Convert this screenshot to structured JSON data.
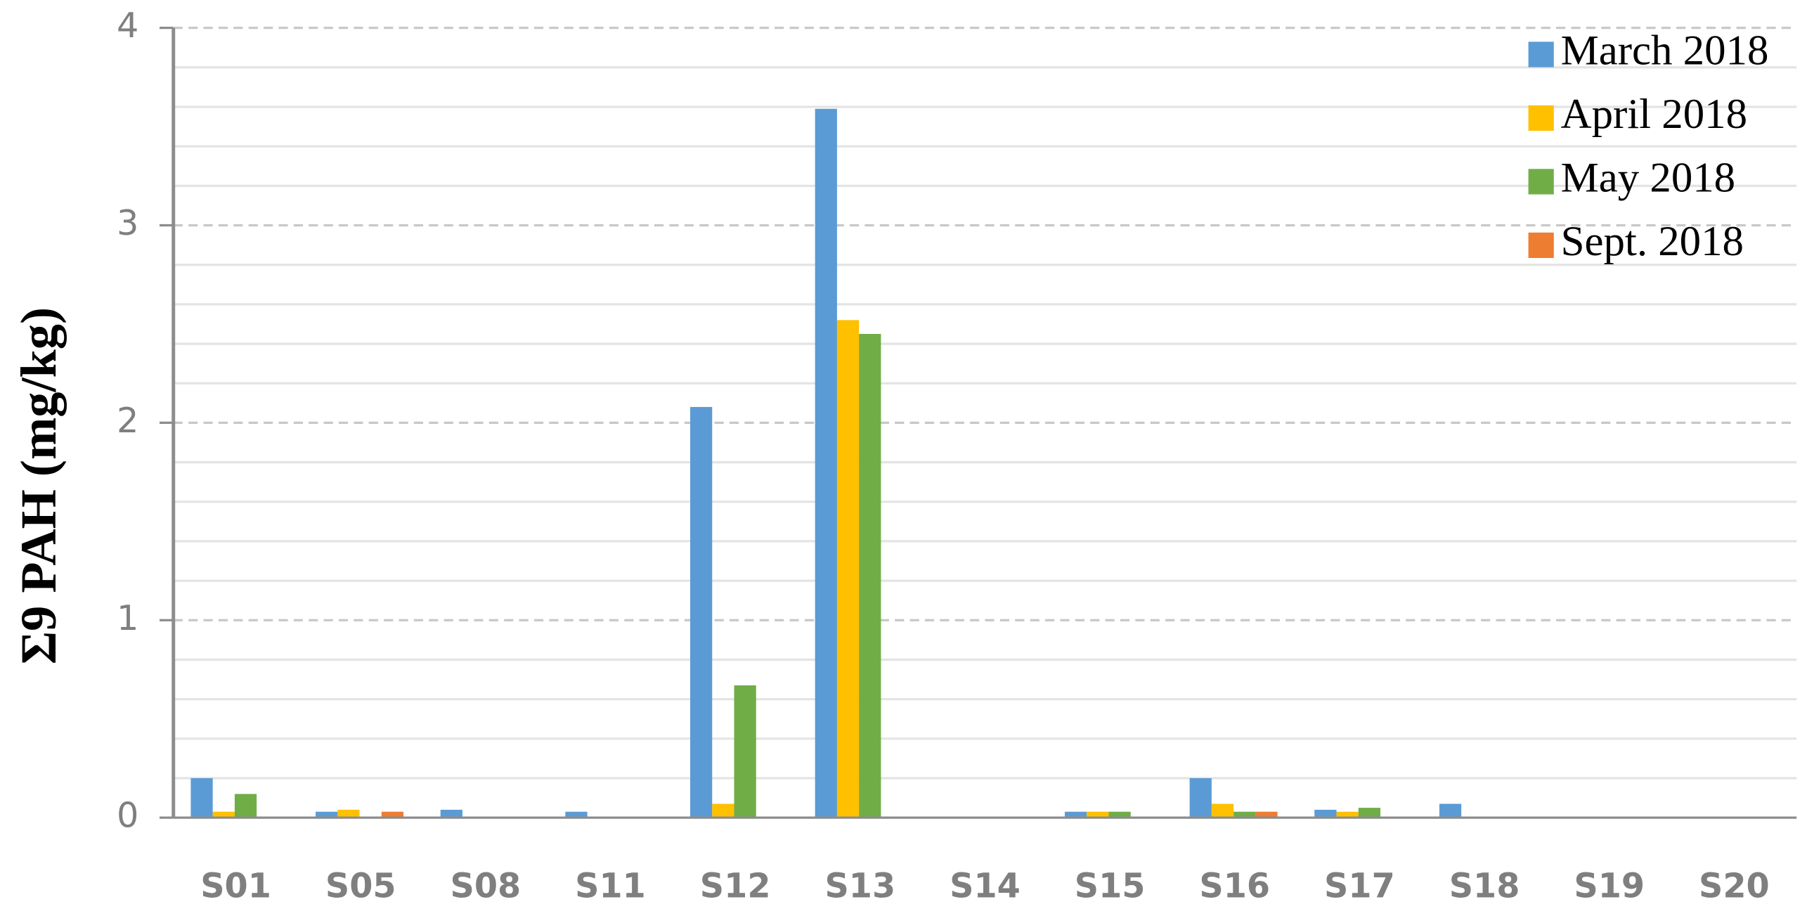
{
  "chart_data": {
    "type": "bar",
    "y_label": "Σ9 PAH (mg/kg)",
    "categories": [
      "S01",
      "S05",
      "S08",
      "S11",
      "S12",
      "S13",
      "S14",
      "S15",
      "S16",
      "S17",
      "S18",
      "S19",
      "S20"
    ],
    "series": [
      {
        "name": "March 2018",
        "color": "#5b9bd5",
        "values": [
          0.2,
          0.03,
          0.04,
          0.03,
          2.08,
          3.59,
          0,
          0.03,
          0.2,
          0.04,
          0.07,
          0,
          0
        ]
      },
      {
        "name": "April 2018",
        "color": "#ffc000",
        "values": [
          0.03,
          0.04,
          0,
          0,
          0.07,
          2.52,
          0,
          0.03,
          0.07,
          0.03,
          0,
          0,
          0
        ]
      },
      {
        "name": "May 2018",
        "color": "#70ad47",
        "values": [
          0.12,
          0,
          0,
          0,
          0.67,
          2.45,
          0,
          0.03,
          0.03,
          0.05,
          0,
          0,
          0
        ]
      },
      {
        "name": "Sept. 2018",
        "color": "#ed7d31",
        "values": [
          0,
          0.03,
          0,
          0,
          0,
          0,
          0,
          0,
          0.03,
          0,
          0,
          0,
          0
        ]
      }
    ],
    "ylim": [
      0,
      4
    ],
    "yticks": [
      0,
      1,
      2,
      3,
      4
    ],
    "minor_gridlines": [
      0.2,
      0.4,
      0.6,
      0.8,
      1.2,
      1.4,
      1.6,
      1.8,
      2.2,
      2.4,
      2.6,
      2.8,
      3.2,
      3.4,
      3.6,
      3.8
    ],
    "grid": true,
    "legend": "top-right"
  }
}
